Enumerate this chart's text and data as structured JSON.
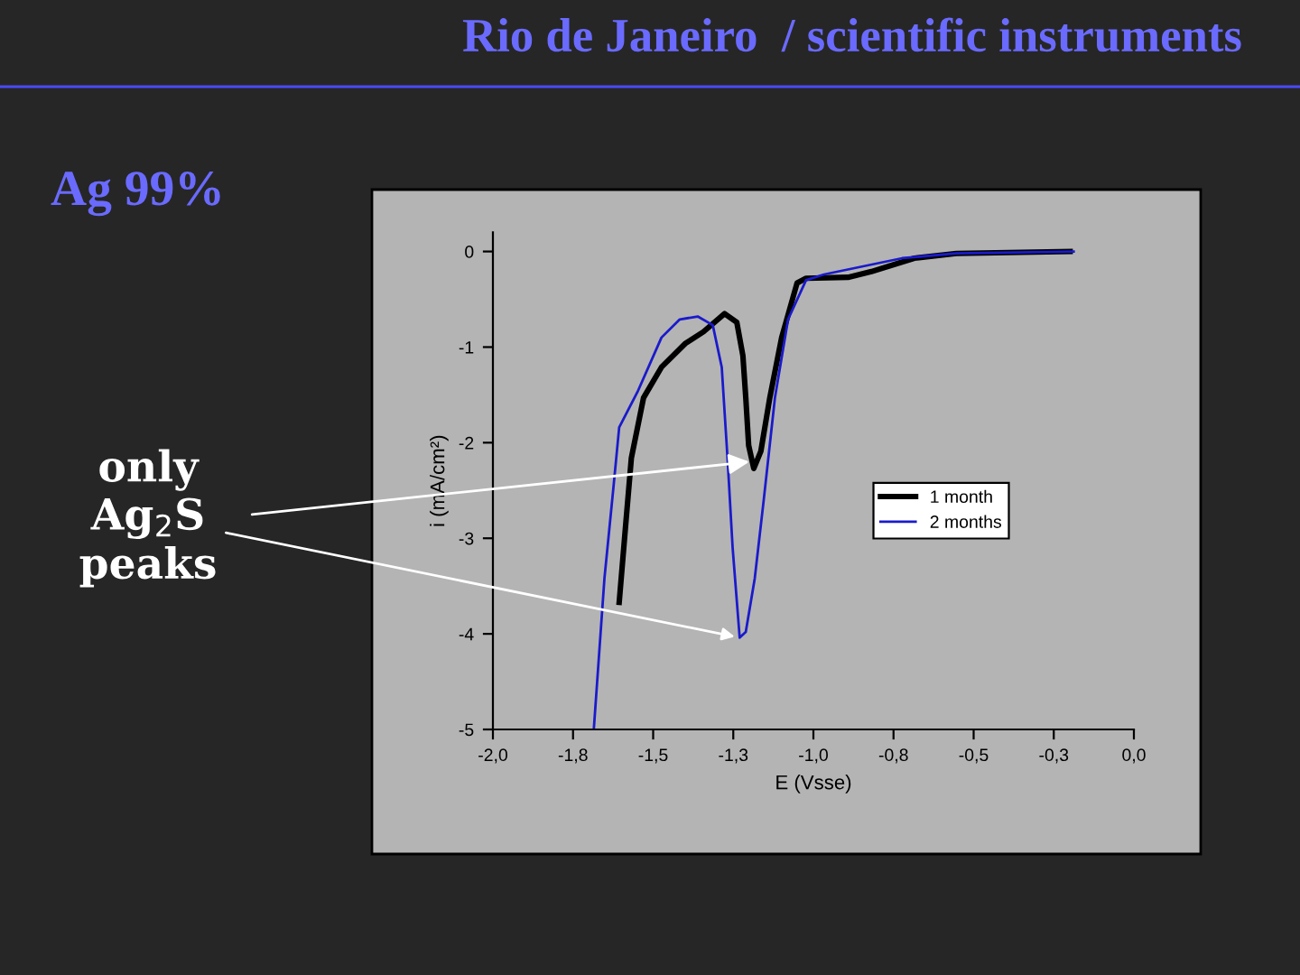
{
  "chart_data": {
    "type": "line",
    "title": "Rio de Janeiro  / scientific instruments",
    "subtitle": "Ag 99%",
    "xlabel": "E (Vsse)",
    "ylabel": "i (mA/cm²)",
    "xlim": [
      -2,
      0
    ],
    "ylim": [
      -5,
      0.2
    ],
    "xticks": [
      {
        "value": -2,
        "label": "-2,0"
      },
      {
        "value": -1.75,
        "label": "-1,8"
      },
      {
        "value": -1.5,
        "label": "-1,5"
      },
      {
        "value": -1.25,
        "label": "-1,3"
      },
      {
        "value": -1,
        "label": "-1,0"
      },
      {
        "value": -0.75,
        "label": "-0,8"
      },
      {
        "value": -0.5,
        "label": "-0,5"
      },
      {
        "value": -0.25,
        "label": "-0,3"
      },
      {
        "value": 0,
        "label": "0,0"
      }
    ],
    "yticks": [
      -5,
      -4,
      -3,
      -2,
      -1,
      0
    ],
    "legend": "right",
    "marker": "none",
    "line_style": "solid",
    "annotations": [
      {
        "text": "only\nAg$_{2}$S\npeaks",
        "x": -1.2,
        "y": -2.2
      }
    ],
    "series": [
      {
        "name": "1 month",
        "color": "#000000",
        "x": [
          -1.606,
          -1.587,
          -1.568,
          -1.53,
          -1.474,
          -1.399,
          -1.343,
          -1.277,
          -1.239,
          -1.22,
          -1.211,
          -1.202,
          -1.186,
          -1.164,
          -1.136,
          -1.099,
          -1.051,
          -1.023,
          -0.892,
          -0.819,
          -0.685,
          -0.554,
          -0.199
        ],
        "values": [
          -3.67,
          -2.91,
          -2.16,
          -1.53,
          -1.21,
          -0.96,
          -0.84,
          -0.65,
          -0.74,
          -1.09,
          -1.53,
          -2.03,
          -2.27,
          -2.09,
          -1.53,
          -0.9,
          -0.33,
          -0.28,
          -0.27,
          -0.21,
          -0.07,
          -0.02,
          0
        ]
      },
      {
        "name": "2 months",
        "color": "#1a1acc",
        "x": [
          -1.685,
          -1.652,
          -1.624,
          -1.606,
          -1.549,
          -1.474,
          -1.417,
          -1.361,
          -1.314,
          -1.286,
          -1.268,
          -1.252,
          -1.23,
          -1.211,
          -1.183,
          -1.155,
          -1.12,
          -1.079,
          -1.023,
          -0.967,
          -0.723,
          -0.554,
          -0.188
        ],
        "values": [
          -4.99,
          -3.42,
          -2.47,
          -1.84,
          -1.47,
          -0.9,
          -0.71,
          -0.68,
          -0.77,
          -1.21,
          -2.16,
          -3.1,
          -4.04,
          -3.98,
          -3.42,
          -2.6,
          -1.53,
          -0.71,
          -0.3,
          -0.24,
          -0.07,
          -0.02,
          0
        ]
      }
    ]
  }
}
